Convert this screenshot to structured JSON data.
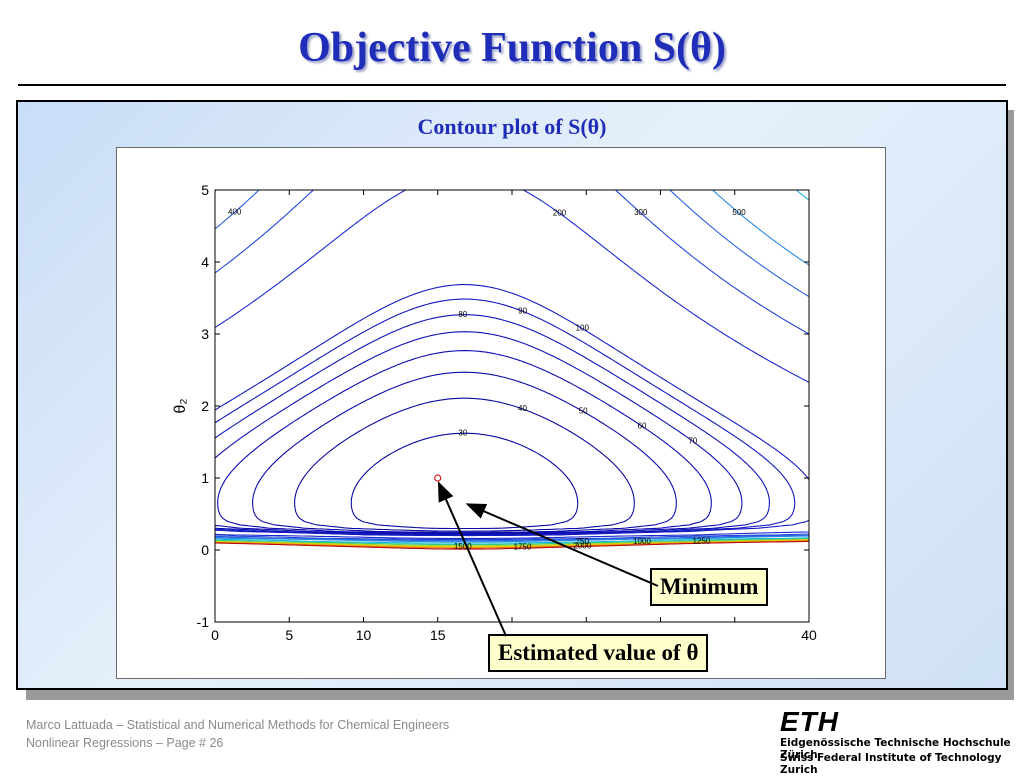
{
  "slide": {
    "title": "Objective Function S(θ)",
    "subtitle": "Contour plot of S(θ)",
    "callout_minimum": "Minimum",
    "callout_estimate": "Estimated value of θ",
    "footer_line1": "Marco Lattuada – Statistical and Numerical Methods for Chemical Engineers",
    "footer_line2": "Nonlinear Regressions – Page #  26",
    "logo_text": "ETH",
    "institution_line1": "Eidgenössische Technische Hochschule Zürich",
    "institution_line2": "Swiss Federal Institute of Technology Zurich"
  },
  "colors": {
    "title": "#1f2db8",
    "panel_bg": "#dce9f8",
    "callout_bg": "#ffffcc",
    "estimate_marker": "#e02020"
  },
  "chart_data": {
    "type": "contour",
    "title": "",
    "xlabel": "",
    "ylabel": "θ₂",
    "xlim": [
      0,
      40
    ],
    "ylim": [
      -1,
      5
    ],
    "xticks": [
      0,
      5,
      10,
      15,
      20,
      25,
      30,
      35,
      40
    ],
    "yticks": [
      -1,
      0,
      1,
      2,
      3,
      4,
      5
    ],
    "visible_x_tick_labels": [
      "0",
      "5",
      "10",
      "15",
      "40"
    ],
    "y_tick_labels": [
      "-1",
      "0",
      "1",
      "2",
      "3",
      "4",
      "5"
    ],
    "grid": false,
    "minimum_point": [
      16.8,
      0.65
    ],
    "estimated_point": [
      15.0,
      1.0
    ],
    "levels": [
      {
        "value": 30,
        "color": "#0a0aa0",
        "label": "30"
      },
      {
        "value": 40,
        "color": "#0a0aa0",
        "label": "40"
      },
      {
        "value": 50,
        "color": "#0c0ca8",
        "label": "50"
      },
      {
        "value": 60,
        "color": "#0c0cb0",
        "label": "60"
      },
      {
        "value": 70,
        "color": "#0e10b4",
        "label": "70"
      },
      {
        "value": 80,
        "color": "#1014b8",
        "label": "80"
      },
      {
        "value": 90,
        "color": "#1218bc",
        "label": "90"
      },
      {
        "value": 100,
        "color": "#141cc0",
        "label": "100"
      },
      {
        "value": 200,
        "color": "#1c2ad0",
        "label": "200"
      },
      {
        "value": 300,
        "color": "#2245d8",
        "label": "300"
      },
      {
        "value": 400,
        "color": "#2a62e0",
        "label": "400"
      },
      {
        "value": 500,
        "color": "#2a88e4",
        "label": "500"
      },
      {
        "value": 750,
        "color": "#19b8d8",
        "label": "750"
      },
      {
        "value": 1000,
        "color": "#30c890",
        "label": "1000"
      },
      {
        "value": 1250,
        "color": "#a8d820",
        "label": "1250"
      },
      {
        "value": 1500,
        "color": "#e8c800",
        "label": "1500"
      },
      {
        "value": 1750,
        "color": "#f07810",
        "label": "1750"
      },
      {
        "value": 2000,
        "color": "#b81010",
        "label": "2000"
      }
    ]
  }
}
